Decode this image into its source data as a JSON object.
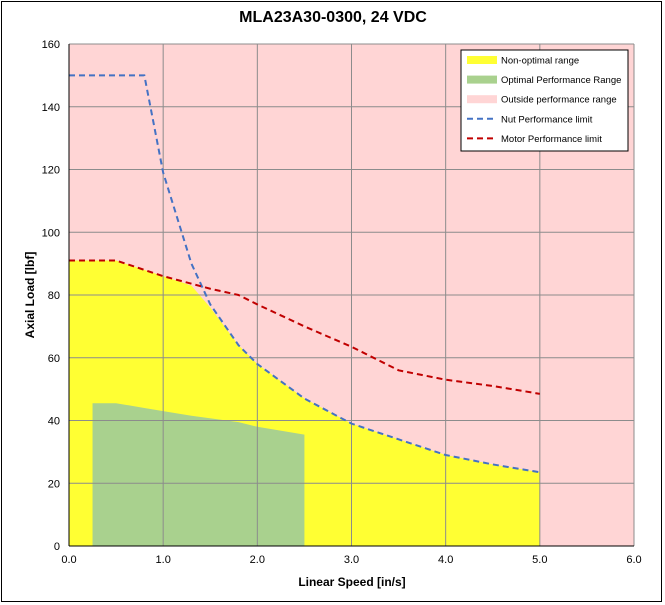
{
  "chart_data": {
    "type": "area",
    "title": "MLA23A30-0300, 24 VDC",
    "xlabel": "Linear Speed [in/s]",
    "ylabel": "Axial Load [lbf]",
    "xlim": [
      0,
      6
    ],
    "ylim": [
      0,
      160
    ],
    "xticks": [
      "0.0",
      "1.0",
      "2.0",
      "3.0",
      "4.0",
      "5.0",
      "6.0"
    ],
    "yticks": [
      "0",
      "20",
      "40",
      "60",
      "80",
      "100",
      "120",
      "140",
      "160"
    ],
    "grid": true,
    "legend_position": "top-right",
    "background_region": {
      "name": "Outside performance range",
      "color": "#FFD5D5"
    },
    "series": [
      {
        "name": "Non-optimal range",
        "kind": "area",
        "color": "#FFFF33",
        "x": [
          0,
          0.5,
          0.8,
          1.0,
          1.3,
          1.5,
          1.8,
          2.0,
          2.5,
          3.0,
          3.5,
          4.0,
          4.5,
          5.0,
          5.0
        ],
        "y": [
          91,
          91,
          88,
          86,
          83,
          76,
          64,
          58,
          47,
          39,
          34,
          29,
          26,
          23.5,
          0
        ]
      },
      {
        "name": "Optimal Performance Range",
        "kind": "area",
        "color": "#A9D18E",
        "x": [
          0.25,
          0.5,
          0.8,
          1.0,
          1.3,
          1.8,
          2.0,
          2.5,
          2.5
        ],
        "y": [
          45.5,
          45.5,
          44,
          43,
          41.5,
          39.5,
          38,
          35.5,
          0
        ]
      },
      {
        "name": "Nut Performance limit",
        "kind": "dashed-line",
        "color": "#4472C4",
        "x": [
          0,
          0.8,
          1.0,
          1.3,
          1.5,
          1.8,
          2.0,
          2.5,
          3.0,
          3.5,
          4.0,
          4.5,
          5.0
        ],
        "y": [
          150,
          150,
          119,
          90,
          77,
          64,
          58,
          47,
          39,
          34,
          29,
          26,
          23.5
        ]
      },
      {
        "name": "Motor Performance limit",
        "kind": "dashed-line",
        "color": "#C00000",
        "x": [
          0,
          0.5,
          0.8,
          1.0,
          1.5,
          1.8,
          2.0,
          2.5,
          3.0,
          3.5,
          4.0,
          4.5,
          5.0
        ],
        "y": [
          91,
          91,
          88,
          86,
          82,
          80,
          77,
          70,
          63.5,
          56,
          53,
          51,
          48.5
        ]
      }
    ],
    "legend": [
      {
        "label": "Non-optimal range",
        "swatch": "block",
        "color": "#FFFF33"
      },
      {
        "label": "Optimal Performance Range",
        "swatch": "block",
        "color": "#A9D18E"
      },
      {
        "label": "Outside performance range",
        "swatch": "block",
        "color": "#FFD5D5"
      },
      {
        "label": "Nut Performance limit",
        "swatch": "dash",
        "color": "#4472C4"
      },
      {
        "label": "Motor Performance limit",
        "swatch": "dash",
        "color": "#C00000"
      }
    ]
  }
}
